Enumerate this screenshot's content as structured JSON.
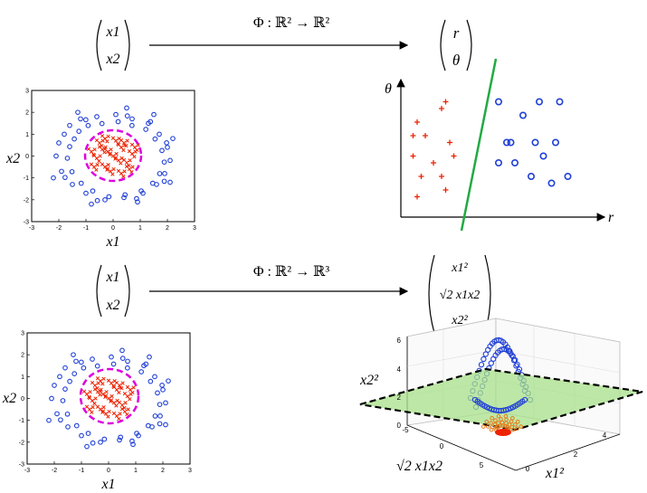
{
  "row1": {
    "input_vector": [
      "x1",
      "x2"
    ],
    "map_label": "Φ : ℝ² → ℝ²",
    "output_vector": [
      "r",
      "θ"
    ],
    "left_plot": {
      "xticks": [
        "-3",
        "-2",
        "-1",
        "0",
        "1",
        "2",
        "3"
      ],
      "yticks": [
        "3",
        "2",
        "1",
        "0",
        "-1",
        "-2",
        "-3"
      ],
      "xlabel": "x1",
      "ylabel": "x2"
    },
    "right_plot": {
      "xlabel": "r",
      "ylabel": "θ"
    }
  },
  "row2": {
    "input_vector": [
      "x1",
      "x2"
    ],
    "map_label": "Φ : ℝ² → ℝ³",
    "output_vector": [
      "x1²",
      "√2 x1x2",
      "x2²"
    ],
    "left_plot": {
      "xticks": [
        "-3",
        "-2",
        "-1",
        "0",
        "1",
        "2",
        "3"
      ],
      "yticks": [
        "3",
        "2",
        "1",
        "0",
        "-1",
        "-2",
        "-3"
      ],
      "xlabel": "x1",
      "ylabel": "x2"
    },
    "plot3d": {
      "zticks": [
        "6",
        "4",
        "2",
        "0"
      ],
      "xticks": [
        "-5",
        "0",
        "5"
      ],
      "yticks": [
        "0",
        "2",
        "4"
      ],
      "zlabel": "x2²",
      "xlabel": "√2 x1x2",
      "ylabel": "x1²"
    }
  },
  "colors": {
    "blue_class": "#1f3fd6",
    "red_class": "#ee2200",
    "boundary_circle": "#dd00dd",
    "separator_line": "#22aa44",
    "plane_fill": "#a8e08a",
    "plane_border": "#000000"
  },
  "chart_data": [
    {
      "type": "scatter",
      "xlim": [
        -3,
        3
      ],
      "ylim": [
        -3,
        3
      ],
      "series": [
        {
          "marker": "circle",
          "color": "blue",
          "points": [
            [
              -1.6,
              1.4
            ],
            [
              -1.2,
              1.7
            ],
            [
              -0.6,
              1.8
            ],
            [
              0.1,
              1.9
            ],
            [
              0.7,
              1.7
            ],
            [
              1.3,
              1.5
            ],
            [
              1.7,
              1.0
            ],
            [
              2.0,
              0.4
            ],
            [
              2.1,
              -0.2
            ],
            [
              1.9,
              -0.8
            ],
            [
              1.6,
              -1.3
            ],
            [
              1.1,
              -1.7
            ],
            [
              0.4,
              -1.9
            ],
            [
              -0.3,
              -2.0
            ],
            [
              -1.0,
              -1.7
            ],
            [
              -1.5,
              -1.3
            ],
            [
              -1.9,
              -0.7
            ],
            [
              -2.1,
              0.0
            ],
            [
              -2.0,
              0.6
            ],
            [
              -1.8,
              1.0
            ],
            [
              -1.3,
              2.0
            ],
            [
              0.5,
              2.2
            ],
            [
              1.5,
              1.9
            ],
            [
              2.2,
              0.8
            ],
            [
              2.1,
              -1.2
            ],
            [
              0.9,
              -2.1
            ],
            [
              -0.8,
              -2.2
            ],
            [
              -2.2,
              -1.0
            ]
          ]
        },
        {
          "marker": "x",
          "color": "red",
          "points": [
            [
              0.0,
              0.0
            ],
            [
              0.3,
              0.4
            ],
            [
              -0.4,
              0.3
            ],
            [
              0.5,
              -0.3
            ],
            [
              -0.3,
              -0.5
            ],
            [
              0.1,
              0.7
            ],
            [
              -0.6,
              -0.1
            ],
            [
              0.7,
              0.1
            ],
            [
              -0.1,
              -0.7
            ],
            [
              0.4,
              0.6
            ],
            [
              -0.5,
              0.6
            ],
            [
              0.6,
              -0.6
            ],
            [
              -0.7,
              -0.5
            ],
            [
              0.2,
              -0.2
            ],
            [
              -0.2,
              0.2
            ],
            [
              0.8,
              0.4
            ],
            [
              -0.8,
              0.2
            ],
            [
              0.3,
              -0.8
            ],
            [
              -0.3,
              0.8
            ]
          ]
        }
      ]
    },
    {
      "type": "scatter",
      "series": [
        {
          "marker": "plus",
          "color": "red",
          "points": [
            [
              0.2,
              0.7
            ],
            [
              0.5,
              0.8
            ],
            [
              0.55,
              0.85
            ],
            [
              0.3,
              0.6
            ],
            [
              0.6,
              0.55
            ],
            [
              0.15,
              0.45
            ],
            [
              0.4,
              0.4
            ],
            [
              0.65,
              0.45
            ],
            [
              0.25,
              0.3
            ],
            [
              0.5,
              0.3
            ],
            [
              0.2,
              0.15
            ],
            [
              0.55,
              0.2
            ],
            [
              0.15,
              0.6
            ]
          ]
        },
        {
          "marker": "circle",
          "color": "blue",
          "points": [
            [
              1.2,
              0.85
            ],
            [
              1.5,
              0.75
            ],
            [
              1.7,
              0.85
            ],
            [
              1.95,
              0.85
            ],
            [
              1.35,
              0.55
            ],
            [
              1.65,
              0.55
            ],
            [
              1.9,
              0.55
            ],
            [
              1.2,
              0.4
            ],
            [
              1.4,
              0.4
            ],
            [
              1.75,
              0.45
            ],
            [
              1.6,
              0.3
            ],
            [
              1.85,
              0.25
            ],
            [
              2.05,
              0.3
            ],
            [
              1.3,
              0.55
            ]
          ]
        }
      ]
    }
  ]
}
